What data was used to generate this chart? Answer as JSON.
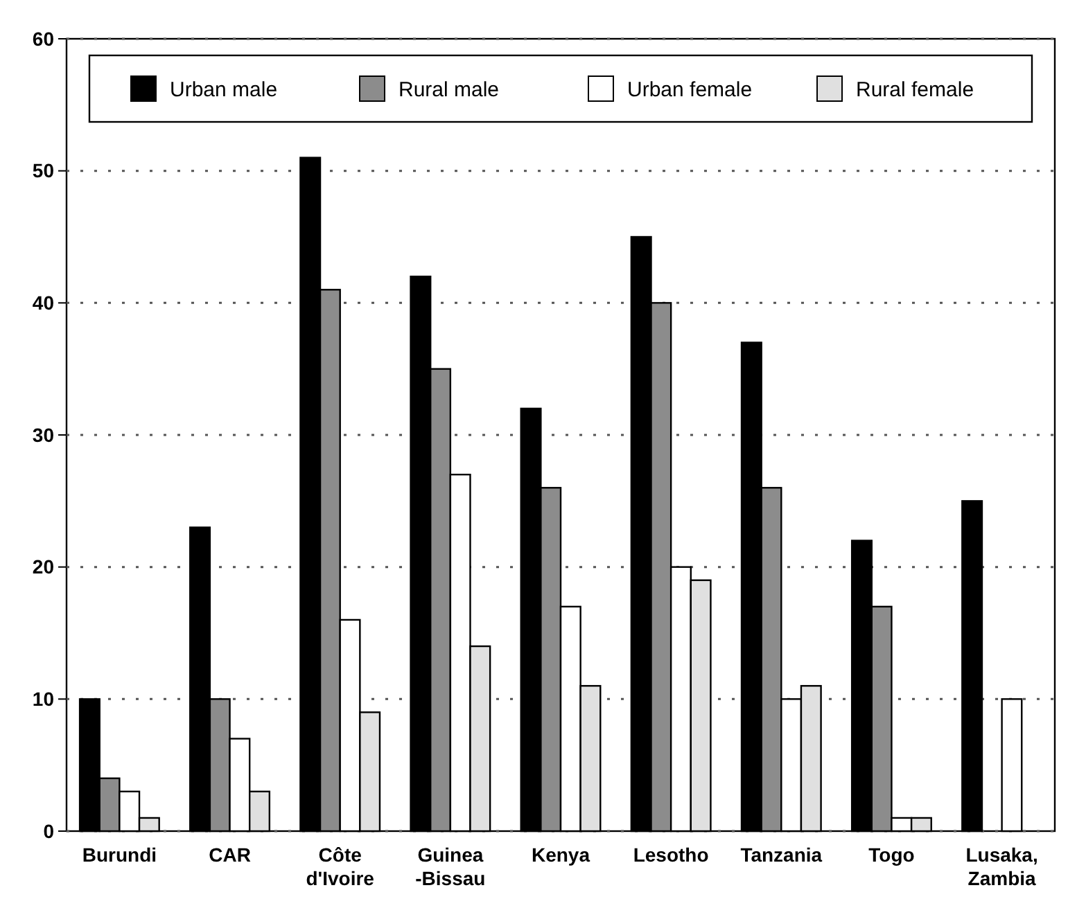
{
  "chart_data": {
    "type": "bar",
    "categories": [
      "Burundi",
      "CAR",
      "Côte\nd'Ivoire",
      "Guinea\n-Bissau",
      "Kenya",
      "Lesotho",
      "Tanzania",
      "Togo",
      "Lusaka,\nZambia"
    ],
    "series": [
      {
        "name": "Urban male",
        "color": "#000000",
        "values": [
          10,
          23,
          51,
          42,
          32,
          45,
          37,
          22,
          25
        ]
      },
      {
        "name": "Rural male",
        "color": "#8c8c8c",
        "values": [
          4,
          10,
          41,
          35,
          26,
          40,
          26,
          17,
          null
        ]
      },
      {
        "name": "Urban female",
        "color": "#ffffff",
        "values": [
          3,
          7,
          16,
          27,
          17,
          20,
          10,
          1,
          10
        ]
      },
      {
        "name": "Rural female",
        "color": "#e0e0e0",
        "values": [
          1,
          3,
          9,
          14,
          11,
          19,
          11,
          1,
          null
        ]
      }
    ],
    "ylim": [
      0,
      60
    ],
    "yticks": [
      0,
      10,
      20,
      30,
      40,
      50,
      60
    ],
    "grid": "y",
    "legend": "top"
  }
}
